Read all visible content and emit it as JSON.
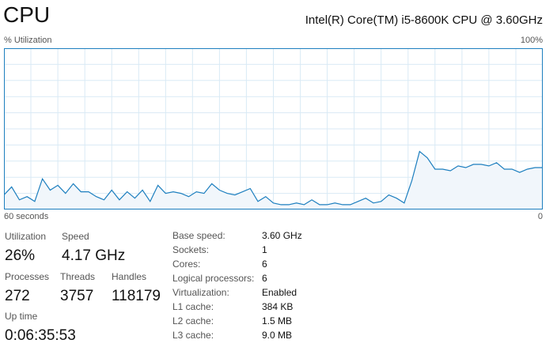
{
  "header": {
    "title": "CPU",
    "cpu_name": "Intel(R) Core(TM) i5-8600K CPU @ 3.60GHz"
  },
  "graph": {
    "y_label": "% Utilization",
    "y_max_label": "100%",
    "x_left_label": "60 seconds",
    "x_right_label": "0",
    "line_color": "#1d7fbf",
    "fill_color": "#f1f6fb",
    "grid_color": "#d9eaf5",
    "border_color": "#1d7fbf"
  },
  "chart_data": {
    "type": "area",
    "xlabel": "",
    "ylabel": "% Utilization",
    "ylim": [
      0,
      100
    ],
    "xlim": [
      60,
      0
    ],
    "grid": true,
    "values": [
      9,
      14,
      6,
      8,
      5,
      19,
      12,
      15,
      10,
      16,
      11,
      11,
      8,
      6,
      12,
      6,
      11,
      7,
      12,
      5,
      15,
      10,
      11,
      10,
      8,
      11,
      10,
      16,
      12,
      10,
      9,
      11,
      13,
      5,
      8,
      4,
      3,
      3,
      4,
      3,
      6,
      3,
      3,
      4,
      3,
      3,
      5,
      7,
      4,
      5,
      9,
      7,
      4,
      18,
      36,
      32,
      25,
      25,
      24,
      27,
      26,
      28,
      28,
      27,
      29,
      25,
      25,
      23,
      25,
      26,
      26
    ]
  },
  "stats": {
    "utilization": {
      "label": "Utilization",
      "value": "26%"
    },
    "speed": {
      "label": "Speed",
      "value": "4.17 GHz"
    },
    "processes": {
      "label": "Processes",
      "value": "272"
    },
    "threads": {
      "label": "Threads",
      "value": "3757"
    },
    "handles": {
      "label": "Handles",
      "value": "118179"
    },
    "uptime": {
      "label": "Up time",
      "value": "0:06:35:53"
    }
  },
  "specs": [
    {
      "key": "Base speed:",
      "value": "3.60 GHz"
    },
    {
      "key": "Sockets:",
      "value": "1"
    },
    {
      "key": "Cores:",
      "value": "6"
    },
    {
      "key": "Logical processors:",
      "value": "6"
    },
    {
      "key": "Virtualization:",
      "value": "Enabled"
    },
    {
      "key": "L1 cache:",
      "value": "384 KB"
    },
    {
      "key": "L2 cache:",
      "value": "1.5 MB"
    },
    {
      "key": "L3 cache:",
      "value": "9.0 MB"
    }
  ]
}
